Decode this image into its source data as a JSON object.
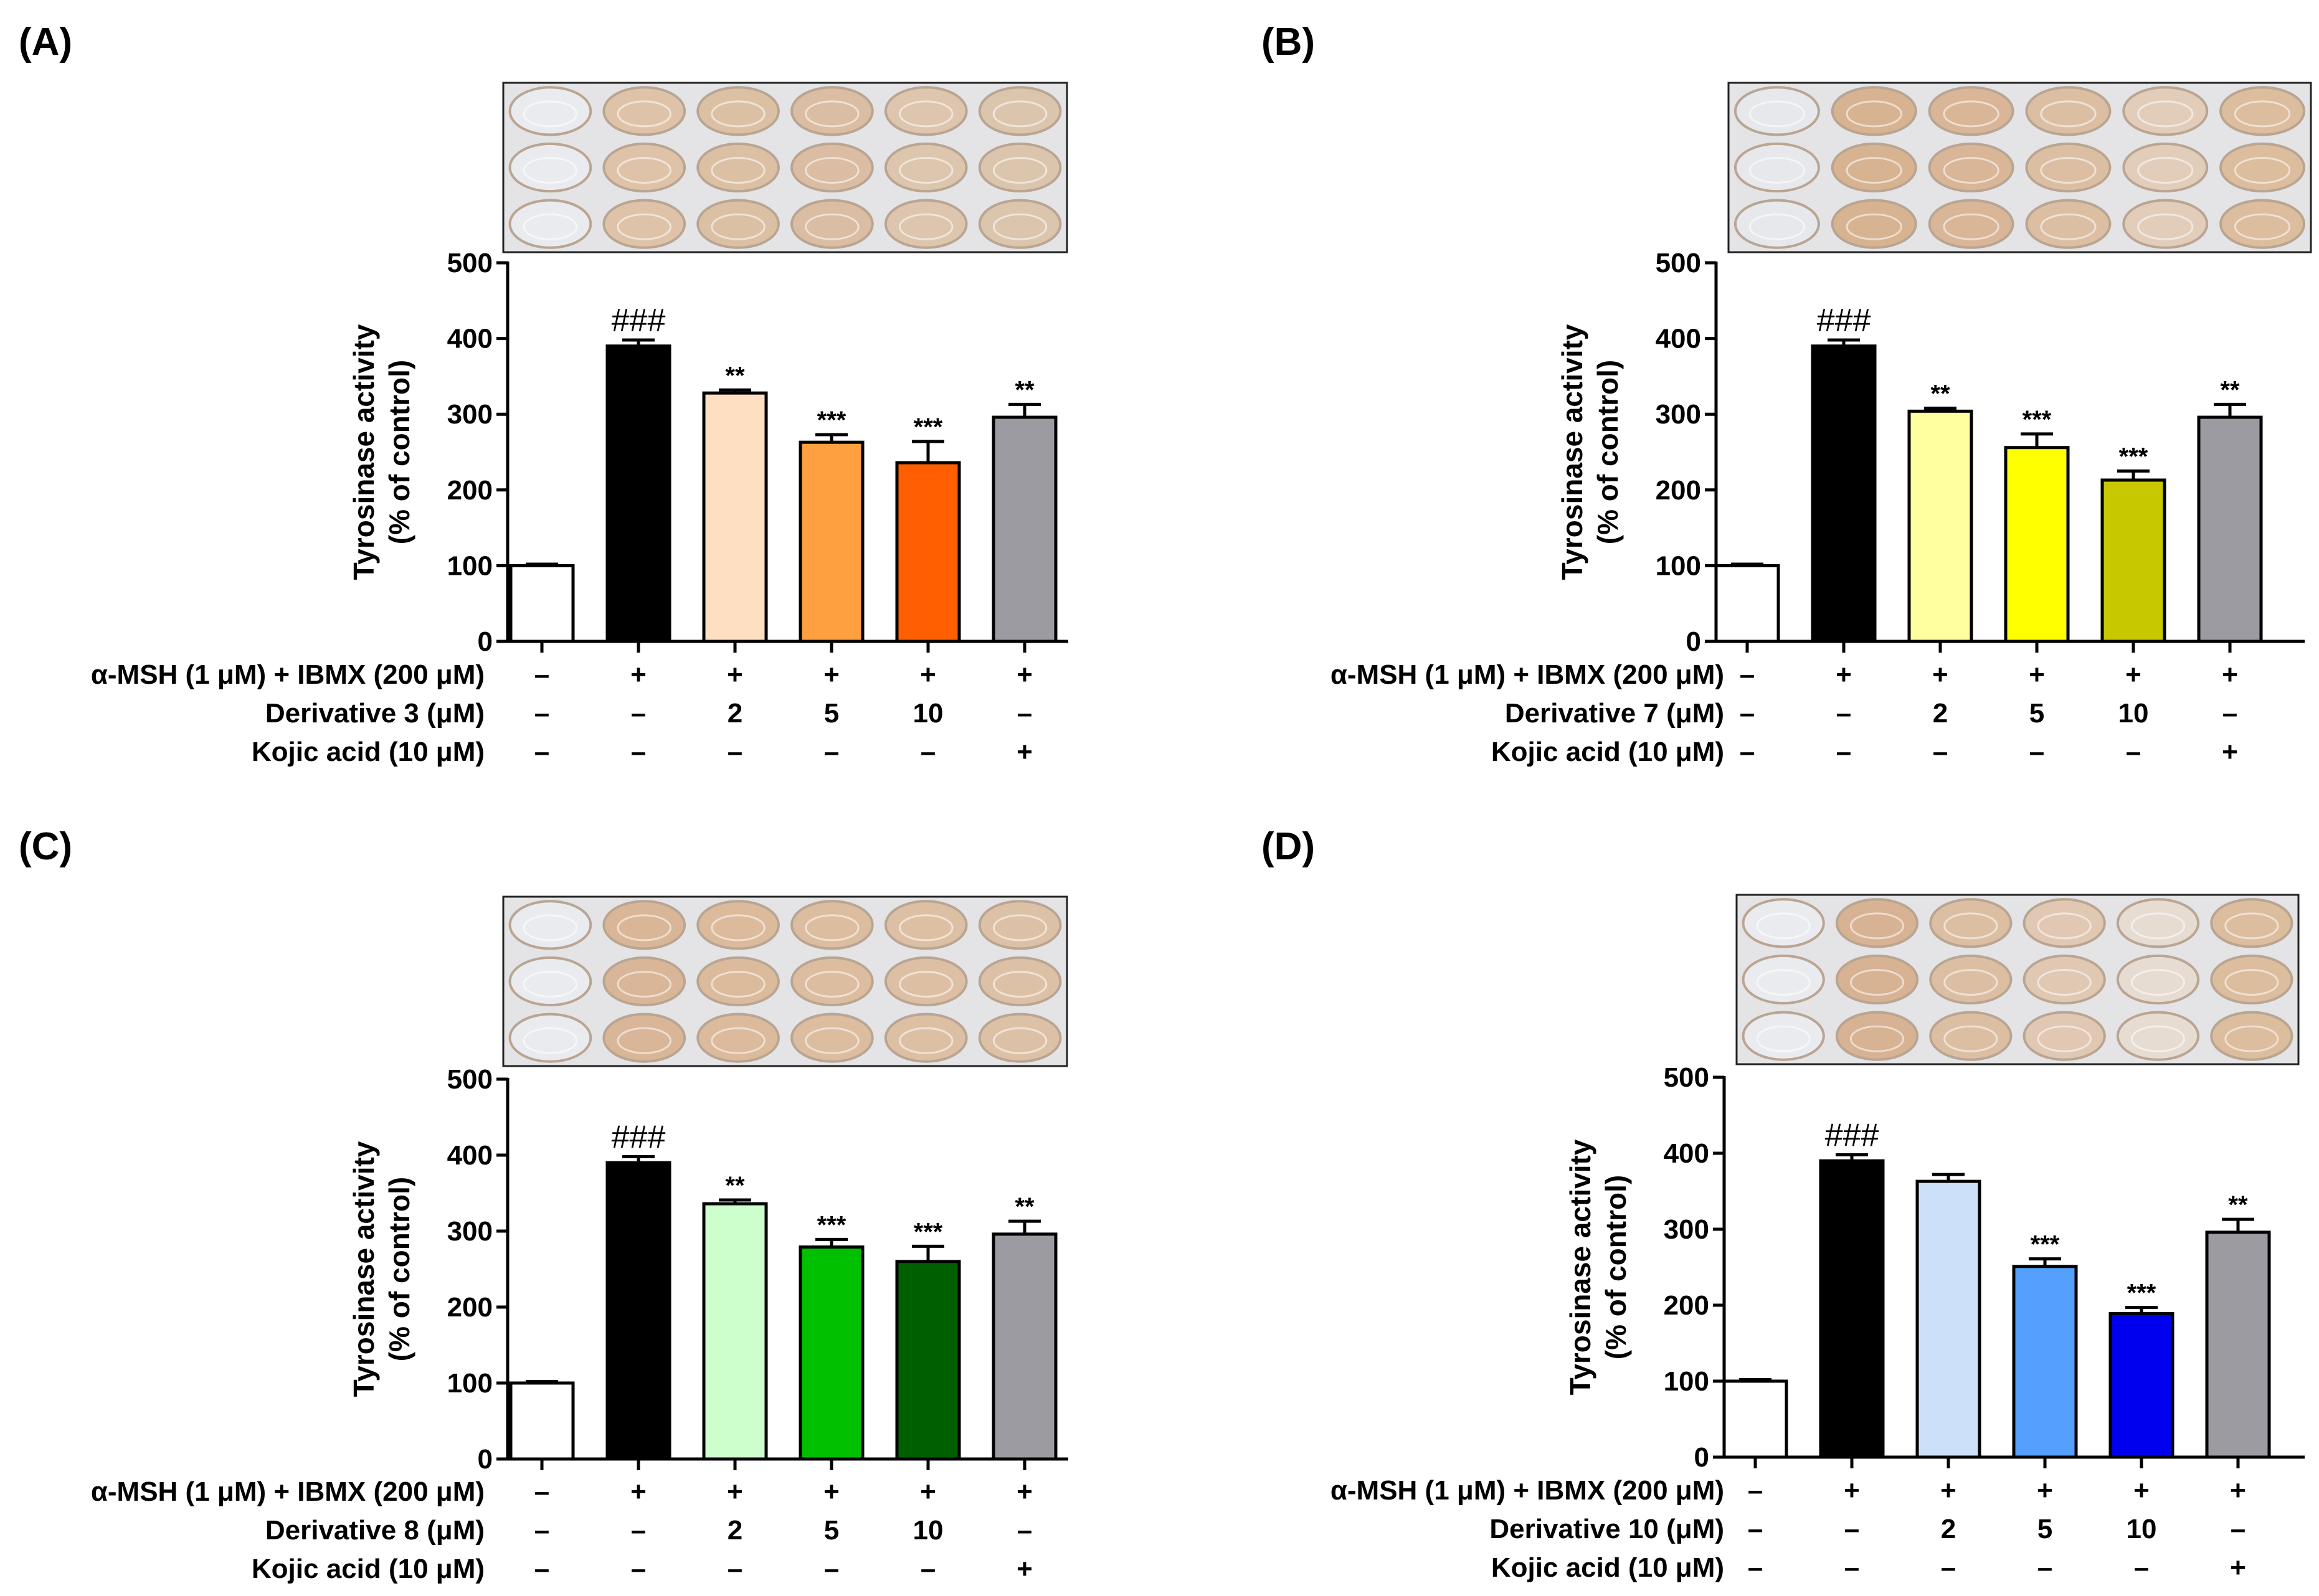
{
  "chart_data": [
    {
      "type": "bar",
      "panel": "(A)",
      "ylabel": [
        "Tyrosinase activity",
        "(% of control)"
      ],
      "ylim": [
        0,
        500
      ],
      "yticks": [
        "0",
        "100",
        "200",
        "300",
        "400",
        "500"
      ],
      "values": [
        100,
        390,
        328,
        263,
        236,
        296
      ],
      "errors": [
        2,
        8,
        4,
        10,
        28,
        17
      ],
      "colors": [
        "#ffffff",
        "#000000",
        "#ffdfc2",
        "#ffa040",
        "#ff5f00",
        "#9b9ba1"
      ],
      "significance": [
        "",
        "###",
        "**",
        "***",
        "***",
        "**"
      ],
      "plate": {
        "wells": [
          "#e9ebef",
          "#dfc3a8",
          "#dcc0a4",
          "#dabda2",
          "#ddc5ae",
          "#dcc5ad"
        ]
      },
      "treatments": [
        {
          "label": "α-MSH (1 μM) + IBMX (200 μM)",
          "cells": [
            "–",
            "+",
            "+",
            "+",
            "+",
            "+"
          ]
        },
        {
          "label": "Derivative 3 (μM)",
          "cells": [
            "–",
            "–",
            "2",
            "5",
            "10",
            "–"
          ]
        },
        {
          "label": "Kojic acid (10 μM)",
          "cells": [
            "–",
            "–",
            "–",
            "–",
            "–",
            "+"
          ]
        }
      ]
    },
    {
      "type": "bar",
      "panel": "(B)",
      "ylabel": [
        "Tyrosinase activity",
        "(% of control)"
      ],
      "ylim": [
        0,
        500
      ],
      "yticks": [
        "0",
        "100",
        "200",
        "300",
        "400",
        "500"
      ],
      "values": [
        100,
        390,
        304,
        256,
        213,
        296
      ],
      "errors": [
        2,
        8,
        4,
        18,
        12,
        17
      ],
      "colors": [
        "#ffffff",
        "#000000",
        "#ffffa0",
        "#ffff00",
        "#c8c800",
        "#9b9ba1"
      ],
      "significance": [
        "",
        "###",
        "**",
        "***",
        "***",
        "**"
      ],
      "plate": {
        "wells": [
          "#e6e8ec",
          "#d7b391",
          "#d9b697",
          "#dcbfa3",
          "#e2cdbb",
          "#dcbd9d"
        ]
      },
      "treatments": [
        {
          "label": "α-MSH (1 μM) + IBMX (200 μM)",
          "cells": [
            "–",
            "+",
            "+",
            "+",
            "+",
            "+"
          ]
        },
        {
          "label": "Derivative 7 (μM)",
          "cells": [
            "–",
            "–",
            "2",
            "5",
            "10",
            "–"
          ]
        },
        {
          "label": "Kojic acid (10 μM)",
          "cells": [
            "–",
            "–",
            "–",
            "–",
            "–",
            "+"
          ]
        }
      ]
    },
    {
      "type": "bar",
      "panel": "(C)",
      "ylabel": [
        "Tyrosinase activity",
        "(% of control)"
      ],
      "ylim": [
        0,
        500
      ],
      "yticks": [
        "0",
        "100",
        "200",
        "300",
        "400",
        "500"
      ],
      "values": [
        100,
        390,
        336,
        279,
        260,
        296
      ],
      "errors": [
        2,
        8,
        5,
        10,
        20,
        17
      ],
      "colors": [
        "#ffffff",
        "#000000",
        "#cdffcd",
        "#00c000",
        "#006000",
        "#9b9ba1"
      ],
      "significance": [
        "",
        "###",
        "**",
        "***",
        "***",
        "**"
      ],
      "plate": {
        "wells": [
          "#e9ebef",
          "#d9b697",
          "#dbbb9c",
          "#dcbd9f",
          "#ddc0a4",
          "#ddc1a6"
        ]
      },
      "treatments": [
        {
          "label": "α-MSH (1 μM) + IBMX (200 μM)",
          "cells": [
            "–",
            "+",
            "+",
            "+",
            "+",
            "+"
          ]
        },
        {
          "label": "Derivative 8 (μM)",
          "cells": [
            "–",
            "–",
            "2",
            "5",
            "10",
            "–"
          ]
        },
        {
          "label": "Kojic acid (10 μM)",
          "cells": [
            "–",
            "–",
            "–",
            "–",
            "–",
            "+"
          ]
        }
      ]
    },
    {
      "type": "bar",
      "panel": "(D)",
      "ylabel": [
        "Tyrosinase activity",
        "(% of control)"
      ],
      "ylim": [
        0,
        500
      ],
      "yticks": [
        "0",
        "100",
        "200",
        "300",
        "400",
        "500"
      ],
      "values": [
        100,
        390,
        363,
        251,
        189,
        296
      ],
      "errors": [
        2,
        8,
        9,
        10,
        8,
        17
      ],
      "colors": [
        "#ffffff",
        "#000000",
        "#cde0fa",
        "#55a0ff",
        "#0000ee",
        "#9b9ba1"
      ],
      "significance": [
        "",
        "###",
        "",
        "***",
        "***",
        "**"
      ],
      "plate": {
        "wells": [
          "#e9ebef",
          "#d7b293",
          "#dcbfa3",
          "#e0c8b3",
          "#e7dcd2",
          "#dcbd9e"
        ]
      },
      "treatments": [
        {
          "label": "α-MSH (1 μM) + IBMX (200 μM)",
          "cells": [
            "–",
            "+",
            "+",
            "+",
            "+",
            "+"
          ]
        },
        {
          "label": "Derivative 10 (μM)",
          "cells": [
            "–",
            "–",
            "2",
            "5",
            "10",
            "–"
          ]
        },
        {
          "label": "Kojic acid (10 μM)",
          "cells": [
            "–",
            "–",
            "–",
            "–",
            "–",
            "+"
          ]
        }
      ]
    }
  ]
}
